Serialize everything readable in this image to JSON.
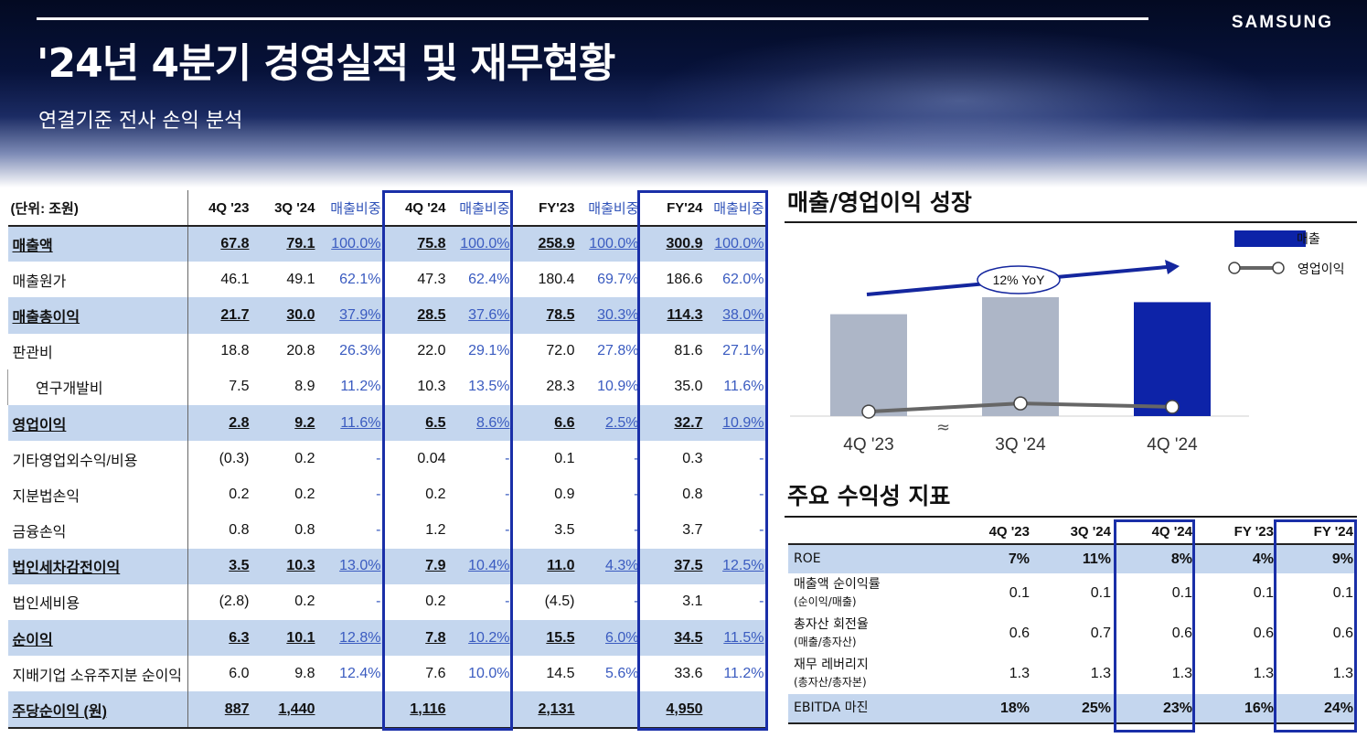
{
  "header": {
    "logo": "SAMSUNG",
    "title": "'24년 4분기 경영실적 및 재무현황",
    "subtitle": "연결기준 전사 손익 분석"
  },
  "main_table": {
    "unit_label": "(단위: 조원)",
    "columns": [
      "4Q '23",
      "3Q '24",
      "매출비중",
      "4Q '24",
      "매출비중",
      "FY'23",
      "매출비중",
      "FY'24",
      "매출비중"
    ],
    "rows": [
      {
        "label": "매출액",
        "values": [
          "67.8",
          "79.1",
          "100.0%",
          "75.8",
          "100.0%",
          "258.9",
          "100.0%",
          "300.9",
          "100.0%"
        ]
      },
      {
        "label": "매출원가",
        "values": [
          "46.1",
          "49.1",
          "62.1%",
          "47.3",
          "62.4%",
          "180.4",
          "69.7%",
          "186.6",
          "62.0%"
        ]
      },
      {
        "label": "매출총이익",
        "values": [
          "21.7",
          "30.0",
          "37.9%",
          "28.5",
          "37.6%",
          "78.5",
          "30.3%",
          "114.3",
          "38.0%"
        ]
      },
      {
        "label": "판관비",
        "values": [
          "18.8",
          "20.8",
          "26.3%",
          "22.0",
          "29.1%",
          "72.0",
          "27.8%",
          "81.6",
          "27.1%"
        ]
      },
      {
        "label": "연구개발비",
        "values": [
          "7.5",
          "8.9",
          "11.2%",
          "10.3",
          "13.5%",
          "28.3",
          "10.9%",
          "35.0",
          "11.6%"
        ]
      },
      {
        "label": "영업이익",
        "values": [
          "2.8",
          "9.2",
          "11.6%",
          "6.5",
          "8.6%",
          "6.6",
          "2.5%",
          "32.7",
          "10.9%"
        ]
      },
      {
        "label": "기타영업외수익/비용",
        "values": [
          "(0.3)",
          "0.2",
          "-",
          "0.04",
          "-",
          "0.1",
          "-",
          "0.3",
          "-"
        ]
      },
      {
        "label": "지분법손익",
        "values": [
          "0.2",
          "0.2",
          "-",
          "0.2",
          "-",
          "0.9",
          "-",
          "0.8",
          "-"
        ]
      },
      {
        "label": "금융손익",
        "values": [
          "0.8",
          "0.8",
          "-",
          "1.2",
          "-",
          "3.5",
          "-",
          "3.7",
          "-"
        ]
      },
      {
        "label": "법인세차감전이익",
        "values": [
          "3.5",
          "10.3",
          "13.0%",
          "7.9",
          "10.4%",
          "11.0",
          "4.3%",
          "37.5",
          "12.5%"
        ]
      },
      {
        "label": "법인세비용",
        "values": [
          "(2.8)",
          "0.2",
          "-",
          "0.2",
          "-",
          "(4.5)",
          "-",
          "3.1",
          "-"
        ]
      },
      {
        "label": "순이익",
        "values": [
          "6.3",
          "10.1",
          "12.8%",
          "7.8",
          "10.2%",
          "15.5",
          "6.0%",
          "34.5",
          "11.5%"
        ]
      },
      {
        "label": "지배기업 소유주지분 순이익",
        "values": [
          "6.0",
          "9.8",
          "12.4%",
          "7.6",
          "10.0%",
          "14.5",
          "5.6%",
          "33.6",
          "11.2%"
        ]
      },
      {
        "label": "주당순이익 (원)",
        "values": [
          "887",
          "1,440",
          "",
          "1,116",
          "",
          "2,131",
          "",
          "4,950",
          ""
        ]
      }
    ]
  },
  "growth_chart": {
    "title": "매출/영업이익 성장",
    "legend": [
      "매출",
      "영업이익"
    ],
    "annotation": "12% YoY",
    "categories": [
      "4Q '23",
      "3Q '24",
      "4Q '24"
    ],
    "colors": {
      "bar_past": "#adb6c7",
      "bar_current": "#0d23a8",
      "line": "#666666",
      "arrow": "#14269e"
    }
  },
  "chart_data": {
    "type": "bar",
    "categories": [
      "4Q '23",
      "3Q '24",
      "4Q '24"
    ],
    "series": [
      {
        "name": "매출",
        "values": [
          67.8,
          79.1,
          75.8
        ]
      },
      {
        "name": "영업이익",
        "values": [
          2.8,
          9.2,
          6.5
        ]
      }
    ],
    "title": "매출/영업이익 성장",
    "legend": "top-right"
  },
  "kpi": {
    "title": "주요 수익성 지표",
    "columns": [
      "4Q '23",
      "3Q '24",
      "4Q '24",
      "FY '23",
      "FY '24"
    ],
    "rows": [
      {
        "label": "ROE",
        "note": "",
        "values": [
          "7%",
          "11%",
          "8%",
          "4%",
          "9%"
        ]
      },
      {
        "label": "매출액 순이익률",
        "note": "(순이익/매출)",
        "values": [
          "0.1",
          "0.1",
          "0.1",
          "0.1",
          "0.1"
        ]
      },
      {
        "label": "총자산 회전율",
        "note": "(매출/총자산)",
        "values": [
          "0.6",
          "0.7",
          "0.6",
          "0.6",
          "0.6"
        ]
      },
      {
        "label": "재무 레버리지",
        "note": "(총자산/총자본)",
        "values": [
          "1.3",
          "1.3",
          "1.3",
          "1.3",
          "1.3"
        ]
      },
      {
        "label": "EBITDA 마진",
        "note": "",
        "values": [
          "18%",
          "25%",
          "23%",
          "16%",
          "24%"
        ]
      }
    ]
  }
}
